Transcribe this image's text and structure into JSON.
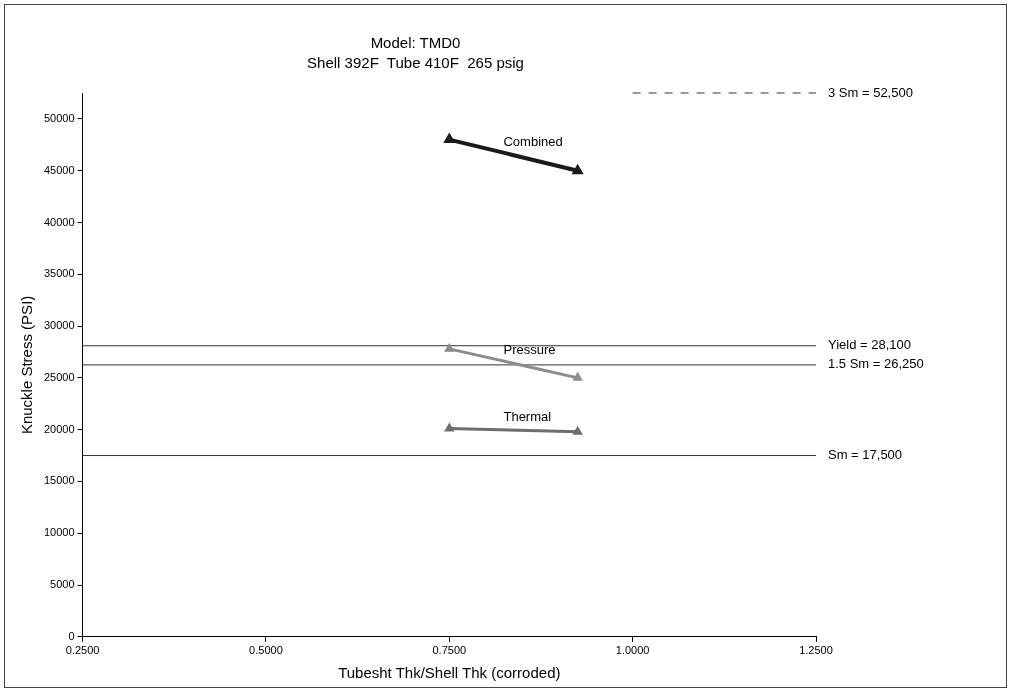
{
  "chart_data": {
    "type": "line",
    "title": "Model: TMD0",
    "subtitle": "Shell 392F  Tube 410F  265 psig",
    "xlabel": "Tubesht Thk/Shell Thk (corroded)",
    "ylabel": "Knuckle Stress (PSI)",
    "xlim": [
      0.25,
      1.25
    ],
    "xticks": [
      {
        "value": 0.25,
        "label": "0.2500"
      },
      {
        "value": 0.5,
        "label": "0.5000"
      },
      {
        "value": 0.75,
        "label": "0.7500"
      },
      {
        "value": 1.0,
        "label": "1.0000"
      },
      {
        "value": 1.25,
        "label": "1.2500"
      }
    ],
    "ylim": [
      0,
      52500
    ],
    "yticks": [
      0,
      5000,
      10000,
      15000,
      20000,
      25000,
      30000,
      35000,
      40000,
      45000,
      50000
    ],
    "x": [
      0.75,
      0.925
    ],
    "series": [
      {
        "name": "Combined",
        "color": "#1a1a1a",
        "values": [
          48000,
          45000
        ]
      },
      {
        "name": "Pressure",
        "color": "#8c8c8c",
        "values": [
          27800,
          25000
        ]
      },
      {
        "name": "Thermal",
        "color": "#6e6e6e",
        "values": [
          20100,
          19800
        ]
      }
    ],
    "ref_lines": [
      {
        "axis": "y",
        "value": 52500,
        "label": "3 Sm = 52,500",
        "color": "#333333",
        "line_style": "dashed"
      },
      {
        "axis": "y",
        "value": 28100,
        "label": "Yield = 28,100",
        "color": "#333333",
        "line_style": "solid"
      },
      {
        "axis": "y",
        "value": 26250,
        "label": "1.5 Sm = 26,250",
        "color": "#333333",
        "line_style": "solid"
      },
      {
        "axis": "y",
        "value": 17500,
        "label": "Sm = 17,500",
        "color": "#333333",
        "line_style": "solid"
      }
    ],
    "grid": false,
    "legend": false,
    "marker": "triangle",
    "line_style": "solid"
  }
}
